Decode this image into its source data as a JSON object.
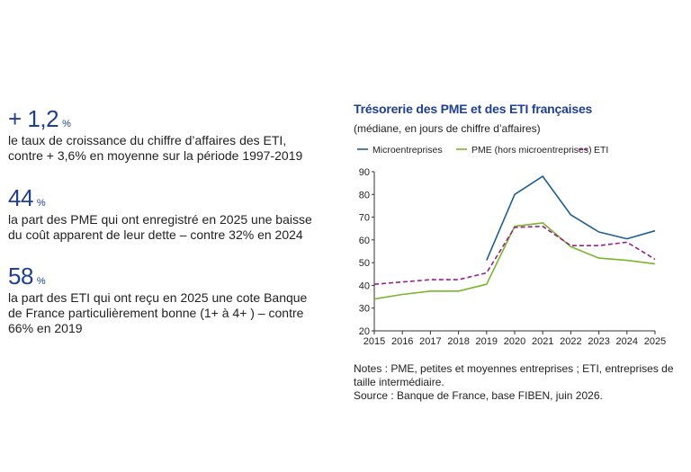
{
  "stats": [
    {
      "value": "+ 1,2",
      "unit": "%",
      "text": "le taux de croissance du chiffre d’affaires des ETI, contre + 3,6% en moyenne sur la période 1997-2019"
    },
    {
      "value": "44",
      "unit": "%",
      "text": "la part des PME qui ont enregistré en 2025 une baisse du coût apparent de leur dette – contre 32% en 2024"
    },
    {
      "value": "58",
      "unit": "%",
      "text": "la part des ETI qui ont reçu en 2025 une cote Banque de France particulièrement bonne (1+ à 4+ ) – contre 66% en 2019"
    }
  ],
  "chart": {
    "title": "Trésorerie des PME et des ETI françaises",
    "subtitle": "(médiane, en jours de chiffre d’affaires)"
  },
  "notes": {
    "line1": "Notes : PME, petites et moyennes entreprises ; ETI, entreprises de taille intermédiaire.",
    "line2": "Source : Banque de France, base FIBEN, juin 2026."
  },
  "chart_data": {
    "type": "line",
    "x": [
      2015,
      2016,
      2017,
      2018,
      2019,
      2020,
      2021,
      2022,
      2023,
      2024,
      2025
    ],
    "ylim": [
      20,
      90
    ],
    "yticks": [
      20,
      30,
      40,
      50,
      60,
      70,
      80,
      90
    ],
    "grid": false,
    "legend_position": "top",
    "series": [
      {
        "name": "Microentreprises",
        "color": "#1f5f8f",
        "dash": false,
        "values": [
          null,
          null,
          null,
          null,
          51,
          80,
          88,
          71,
          63.5,
          60.5,
          64
        ]
      },
      {
        "name": "PME (hors microentreprises)",
        "color": "#7ab52e",
        "dash": false,
        "values": [
          34,
          36,
          37.5,
          37.5,
          40.5,
          66,
          67.5,
          57,
          52,
          51,
          49.5
        ]
      },
      {
        "name": "ETI",
        "color": "#9a1f8a",
        "dash": true,
        "values": [
          40.5,
          41.5,
          42.5,
          42.5,
          45.5,
          65.5,
          66,
          57.5,
          57.5,
          59,
          51.5
        ]
      }
    ]
  }
}
